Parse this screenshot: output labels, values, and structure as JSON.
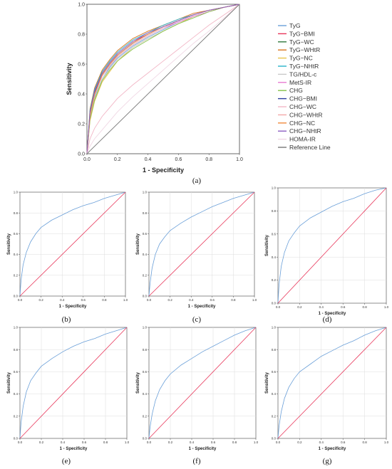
{
  "figure": {
    "panel_labels": [
      "(a)",
      "(b)",
      "(c)",
      "(d)",
      "(e)",
      "(f)",
      "(g)"
    ]
  },
  "chart_data": [
    {
      "panel": "(a)",
      "type": "line",
      "xlabel": "1 - Specificity",
      "ylabel": "Sensitivity",
      "xlim": [
        0,
        1
      ],
      "ylim": [
        0,
        1
      ],
      "xticks": [
        "0.0",
        "0.2",
        "0.4",
        "0.6",
        "0.8",
        "1.0"
      ],
      "yticks": [
        "0.0",
        "0.2",
        "0.4",
        "0.6",
        "0.8",
        "1.0"
      ],
      "grid": false,
      "legend_position": "right",
      "series": [
        {
          "name": "TyG",
          "color": "#6a9fd8",
          "x": [
            0,
            0.02,
            0.05,
            0.1,
            0.15,
            0.2,
            0.3,
            0.4,
            0.5,
            0.6,
            0.7,
            0.8,
            0.9,
            1
          ],
          "y": [
            0,
            0.25,
            0.38,
            0.5,
            0.58,
            0.64,
            0.72,
            0.78,
            0.83,
            0.88,
            0.92,
            0.95,
            0.98,
            1
          ]
        },
        {
          "name": "TyG−BMI",
          "color": "#e8365a",
          "x": [
            0,
            0.02,
            0.05,
            0.1,
            0.15,
            0.2,
            0.3,
            0.4,
            0.5,
            0.6,
            0.7,
            0.8,
            0.9,
            1
          ],
          "y": [
            0,
            0.28,
            0.42,
            0.54,
            0.61,
            0.67,
            0.75,
            0.8,
            0.85,
            0.89,
            0.93,
            0.96,
            0.98,
            1
          ]
        },
        {
          "name": "TyG−WC",
          "color": "#2f7a3c",
          "x": [
            0,
            0.02,
            0.05,
            0.1,
            0.15,
            0.2,
            0.3,
            0.4,
            0.5,
            0.6,
            0.7,
            0.8,
            0.9,
            1
          ],
          "y": [
            0,
            0.27,
            0.4,
            0.53,
            0.6,
            0.66,
            0.74,
            0.8,
            0.85,
            0.89,
            0.93,
            0.96,
            0.98,
            1
          ]
        },
        {
          "name": "TyG−WHtR",
          "color": "#d9751f",
          "x": [
            0,
            0.02,
            0.05,
            0.1,
            0.15,
            0.2,
            0.3,
            0.4,
            0.5,
            0.6,
            0.7,
            0.8,
            0.9,
            1
          ],
          "y": [
            0,
            0.3,
            0.44,
            0.56,
            0.63,
            0.69,
            0.77,
            0.82,
            0.86,
            0.9,
            0.94,
            0.96,
            0.98,
            1
          ]
        },
        {
          "name": "TyG−NC",
          "color": "#e9c34a",
          "x": [
            0,
            0.02,
            0.05,
            0.1,
            0.15,
            0.2,
            0.3,
            0.4,
            0.5,
            0.6,
            0.7,
            0.8,
            0.9,
            1
          ],
          "y": [
            0,
            0.22,
            0.35,
            0.48,
            0.55,
            0.62,
            0.71,
            0.77,
            0.82,
            0.87,
            0.92,
            0.95,
            0.98,
            1
          ]
        },
        {
          "name": "TyG−NHtR",
          "color": "#26b3c9",
          "x": [
            0,
            0.02,
            0.05,
            0.1,
            0.15,
            0.2,
            0.3,
            0.4,
            0.5,
            0.6,
            0.7,
            0.8,
            0.9,
            1
          ],
          "y": [
            0,
            0.29,
            0.43,
            0.55,
            0.62,
            0.68,
            0.76,
            0.81,
            0.86,
            0.9,
            0.93,
            0.96,
            0.98,
            1
          ]
        },
        {
          "name": "TG/HDL-c",
          "color": "#c9c9c9",
          "x": [
            0,
            0.02,
            0.05,
            0.1,
            0.15,
            0.2,
            0.3,
            0.4,
            0.5,
            0.6,
            0.7,
            0.8,
            0.9,
            1
          ],
          "y": [
            0,
            0.24,
            0.37,
            0.5,
            0.57,
            0.63,
            0.71,
            0.77,
            0.82,
            0.87,
            0.91,
            0.95,
            0.98,
            1
          ]
        },
        {
          "name": "MetS-IR",
          "color": "#e87bd2",
          "x": [
            0,
            0.02,
            0.05,
            0.1,
            0.15,
            0.2,
            0.3,
            0.4,
            0.5,
            0.6,
            0.7,
            0.8,
            0.9,
            1
          ],
          "y": [
            0,
            0.26,
            0.4,
            0.52,
            0.59,
            0.65,
            0.73,
            0.79,
            0.84,
            0.88,
            0.92,
            0.95,
            0.98,
            1
          ]
        },
        {
          "name": "CHG",
          "color": "#86c24a",
          "x": [
            0,
            0.02,
            0.05,
            0.1,
            0.15,
            0.2,
            0.3,
            0.4,
            0.5,
            0.6,
            0.7,
            0.8,
            0.9,
            1
          ],
          "y": [
            0,
            0.23,
            0.36,
            0.49,
            0.56,
            0.62,
            0.7,
            0.76,
            0.82,
            0.87,
            0.91,
            0.95,
            0.98,
            1
          ]
        },
        {
          "name": "CHG−BMI",
          "color": "#2e3f9e",
          "x": [
            0,
            0.02,
            0.05,
            0.1,
            0.15,
            0.2,
            0.3,
            0.4,
            0.5,
            0.6,
            0.7,
            0.8,
            0.9,
            1
          ],
          "y": [
            0,
            0.27,
            0.41,
            0.53,
            0.6,
            0.66,
            0.74,
            0.8,
            0.85,
            0.89,
            0.93,
            0.96,
            0.98,
            1
          ]
        },
        {
          "name": "CHG−WC",
          "color": "#f2b6c6",
          "x": [
            0,
            0.02,
            0.05,
            0.1,
            0.15,
            0.2,
            0.3,
            0.4,
            0.5,
            0.6,
            0.7,
            0.8,
            0.9,
            1
          ],
          "y": [
            0,
            0.1,
            0.17,
            0.25,
            0.31,
            0.37,
            0.46,
            0.54,
            0.62,
            0.7,
            0.78,
            0.86,
            0.93,
            1
          ]
        },
        {
          "name": "CHG−WHtR",
          "color": "#f3a9a9",
          "x": [
            0,
            0.02,
            0.05,
            0.1,
            0.15,
            0.2,
            0.3,
            0.4,
            0.5,
            0.6,
            0.7,
            0.8,
            0.9,
            1
          ],
          "y": [
            0,
            0.25,
            0.39,
            0.52,
            0.59,
            0.65,
            0.73,
            0.79,
            0.84,
            0.89,
            0.93,
            0.96,
            0.98,
            1
          ]
        },
        {
          "name": "CHG−NC",
          "color": "#f08a3c",
          "x": [
            0,
            0.02,
            0.05,
            0.1,
            0.15,
            0.2,
            0.3,
            0.4,
            0.5,
            0.6,
            0.7,
            0.8,
            0.9,
            1
          ],
          "y": [
            0,
            0.26,
            0.4,
            0.53,
            0.6,
            0.66,
            0.74,
            0.8,
            0.85,
            0.89,
            0.93,
            0.96,
            0.98,
            1
          ]
        },
        {
          "name": "CHG−NHtR",
          "color": "#8d5ec2",
          "x": [
            0,
            0.02,
            0.05,
            0.1,
            0.15,
            0.2,
            0.3,
            0.4,
            0.5,
            0.6,
            0.7,
            0.8,
            0.9,
            1
          ],
          "y": [
            0,
            0.28,
            0.42,
            0.54,
            0.61,
            0.67,
            0.75,
            0.81,
            0.85,
            0.89,
            0.93,
            0.96,
            0.98,
            1
          ]
        },
        {
          "name": "HOMA-IR",
          "color": "#f0d7e4",
          "x": [
            0,
            0.02,
            0.05,
            0.1,
            0.15,
            0.2,
            0.3,
            0.4,
            0.5,
            0.6,
            0.7,
            0.8,
            0.9,
            1
          ],
          "y": [
            0,
            0.05,
            0.1,
            0.16,
            0.22,
            0.28,
            0.38,
            0.47,
            0.56,
            0.65,
            0.74,
            0.82,
            0.91,
            1
          ]
        },
        {
          "name": "Reference Line",
          "color": "#777777",
          "x": [
            0,
            1
          ],
          "y": [
            0,
            1
          ]
        }
      ]
    },
    {
      "panel": "(b)",
      "type": "line",
      "xlabel": "1 - Specificity",
      "ylabel": "Sensitivity",
      "xlim": [
        0,
        1
      ],
      "ylim": [
        0,
        1
      ],
      "xticks": [
        "0.0",
        "0.2",
        "0.4",
        "0.6",
        "0.8",
        "1.0"
      ],
      "yticks": [
        "0.0",
        "0.2",
        "0.4",
        "0.6",
        "0.8",
        "1.0"
      ],
      "grid": true,
      "series": [
        {
          "color": "#6a9fd8",
          "x": [
            0,
            0.01,
            0.03,
            0.06,
            0.1,
            0.15,
            0.2,
            0.3,
            0.4,
            0.5,
            0.6,
            0.7,
            0.8,
            0.9,
            1
          ],
          "y": [
            0,
            0.15,
            0.3,
            0.42,
            0.52,
            0.6,
            0.66,
            0.73,
            0.78,
            0.83,
            0.87,
            0.9,
            0.94,
            0.97,
            1
          ]
        },
        {
          "color": "#e8365a",
          "x": [
            0,
            1
          ],
          "y": [
            0,
            1
          ]
        }
      ]
    },
    {
      "panel": "(c)",
      "type": "line",
      "xlabel": "1 - Specificity",
      "ylabel": "Sensitivity",
      "xlim": [
        0,
        1
      ],
      "ylim": [
        0,
        1
      ],
      "xticks": [
        "0.0",
        "0.2",
        "0.4",
        "0.6",
        "0.8",
        "1.0"
      ],
      "yticks": [
        "0.0",
        "0.2",
        "0.4",
        "0.6",
        "0.8",
        "1.0"
      ],
      "grid": true,
      "series": [
        {
          "color": "#6a9fd8",
          "x": [
            0,
            0.01,
            0.03,
            0.06,
            0.1,
            0.15,
            0.2,
            0.3,
            0.4,
            0.5,
            0.6,
            0.7,
            0.8,
            0.9,
            1
          ],
          "y": [
            0,
            0.12,
            0.27,
            0.4,
            0.5,
            0.57,
            0.63,
            0.7,
            0.76,
            0.81,
            0.86,
            0.9,
            0.94,
            0.97,
            1
          ]
        },
        {
          "color": "#e8365a",
          "x": [
            0,
            1
          ],
          "y": [
            0,
            1
          ]
        }
      ]
    },
    {
      "panel": "(d)",
      "type": "line",
      "xlabel": "1 - Specificity",
      "ylabel": "Sensitivity",
      "xlim": [
        0,
        1
      ],
      "ylim": [
        0,
        1
      ],
      "xticks": [
        "0.0",
        "0.2",
        "0.4",
        "0.6",
        "0.8",
        "1.0"
      ],
      "yticks": [
        "0.0",
        "0.2",
        "0.4",
        "0.6",
        "0.8",
        "1.0"
      ],
      "grid": true,
      "series": [
        {
          "color": "#6a9fd8",
          "x": [
            0,
            0.01,
            0.03,
            0.06,
            0.1,
            0.15,
            0.2,
            0.3,
            0.4,
            0.5,
            0.6,
            0.7,
            0.8,
            0.9,
            1
          ],
          "y": [
            0,
            0.16,
            0.32,
            0.44,
            0.54,
            0.61,
            0.67,
            0.74,
            0.79,
            0.84,
            0.88,
            0.91,
            0.95,
            0.98,
            1
          ]
        },
        {
          "color": "#e8365a",
          "x": [
            0,
            1
          ],
          "y": [
            0,
            1
          ]
        }
      ]
    },
    {
      "panel": "(e)",
      "type": "line",
      "xlabel": "1 - Specificity",
      "ylabel": "Sensitivity",
      "xlim": [
        0,
        1
      ],
      "ylim": [
        0,
        1
      ],
      "xticks": [
        "0.0",
        "0.2",
        "0.4",
        "0.6",
        "0.8",
        "1.0"
      ],
      "yticks": [
        "0.0",
        "0.2",
        "0.4",
        "0.6",
        "0.8",
        "1.0"
      ],
      "grid": true,
      "series": [
        {
          "color": "#6a9fd8",
          "x": [
            0,
            0.01,
            0.03,
            0.06,
            0.1,
            0.15,
            0.2,
            0.3,
            0.4,
            0.5,
            0.6,
            0.7,
            0.8,
            0.9,
            1
          ],
          "y": [
            0,
            0.14,
            0.29,
            0.42,
            0.52,
            0.59,
            0.65,
            0.72,
            0.78,
            0.83,
            0.87,
            0.9,
            0.94,
            0.97,
            1
          ]
        },
        {
          "color": "#e8365a",
          "x": [
            0,
            1
          ],
          "y": [
            0,
            1
          ]
        }
      ]
    },
    {
      "panel": "(f)",
      "type": "line",
      "xlabel": "1 - Specificity",
      "ylabel": "Sensitivity",
      "xlim": [
        0,
        1
      ],
      "ylim": [
        0,
        1
      ],
      "xticks": [
        "0.0",
        "0.2",
        "0.4",
        "0.6",
        "0.8",
        "1.0"
      ],
      "yticks": [
        "0.0",
        "0.2",
        "0.4",
        "0.6",
        "0.8",
        "1.0"
      ],
      "grid": true,
      "series": [
        {
          "color": "#6a9fd8",
          "x": [
            0,
            0.01,
            0.03,
            0.06,
            0.1,
            0.15,
            0.2,
            0.3,
            0.4,
            0.5,
            0.6,
            0.7,
            0.8,
            0.9,
            1
          ],
          "y": [
            0,
            0.1,
            0.22,
            0.34,
            0.44,
            0.52,
            0.58,
            0.66,
            0.72,
            0.78,
            0.83,
            0.88,
            0.93,
            0.97,
            1
          ]
        },
        {
          "color": "#e8365a",
          "x": [
            0,
            1
          ],
          "y": [
            0,
            1
          ]
        }
      ]
    },
    {
      "panel": "(g)",
      "type": "line",
      "xlabel": "1 - Specificity",
      "ylabel": "Sensitivity",
      "xlim": [
        0,
        1
      ],
      "ylim": [
        0,
        1
      ],
      "xticks": [
        "0.0",
        "0.2",
        "0.4",
        "0.6",
        "0.8",
        "1.0"
      ],
      "yticks": [
        "0.0",
        "0.2",
        "0.4",
        "0.6",
        "0.8",
        "1.0"
      ],
      "grid": true,
      "series": [
        {
          "color": "#6a9fd8",
          "x": [
            0,
            0.01,
            0.03,
            0.06,
            0.1,
            0.15,
            0.2,
            0.3,
            0.4,
            0.5,
            0.6,
            0.7,
            0.8,
            0.9,
            1
          ],
          "y": [
            0,
            0.11,
            0.24,
            0.36,
            0.46,
            0.54,
            0.6,
            0.67,
            0.74,
            0.79,
            0.84,
            0.88,
            0.93,
            0.97,
            1
          ]
        },
        {
          "color": "#e8365a",
          "x": [
            0,
            1
          ],
          "y": [
            0,
            1
          ]
        }
      ]
    }
  ]
}
